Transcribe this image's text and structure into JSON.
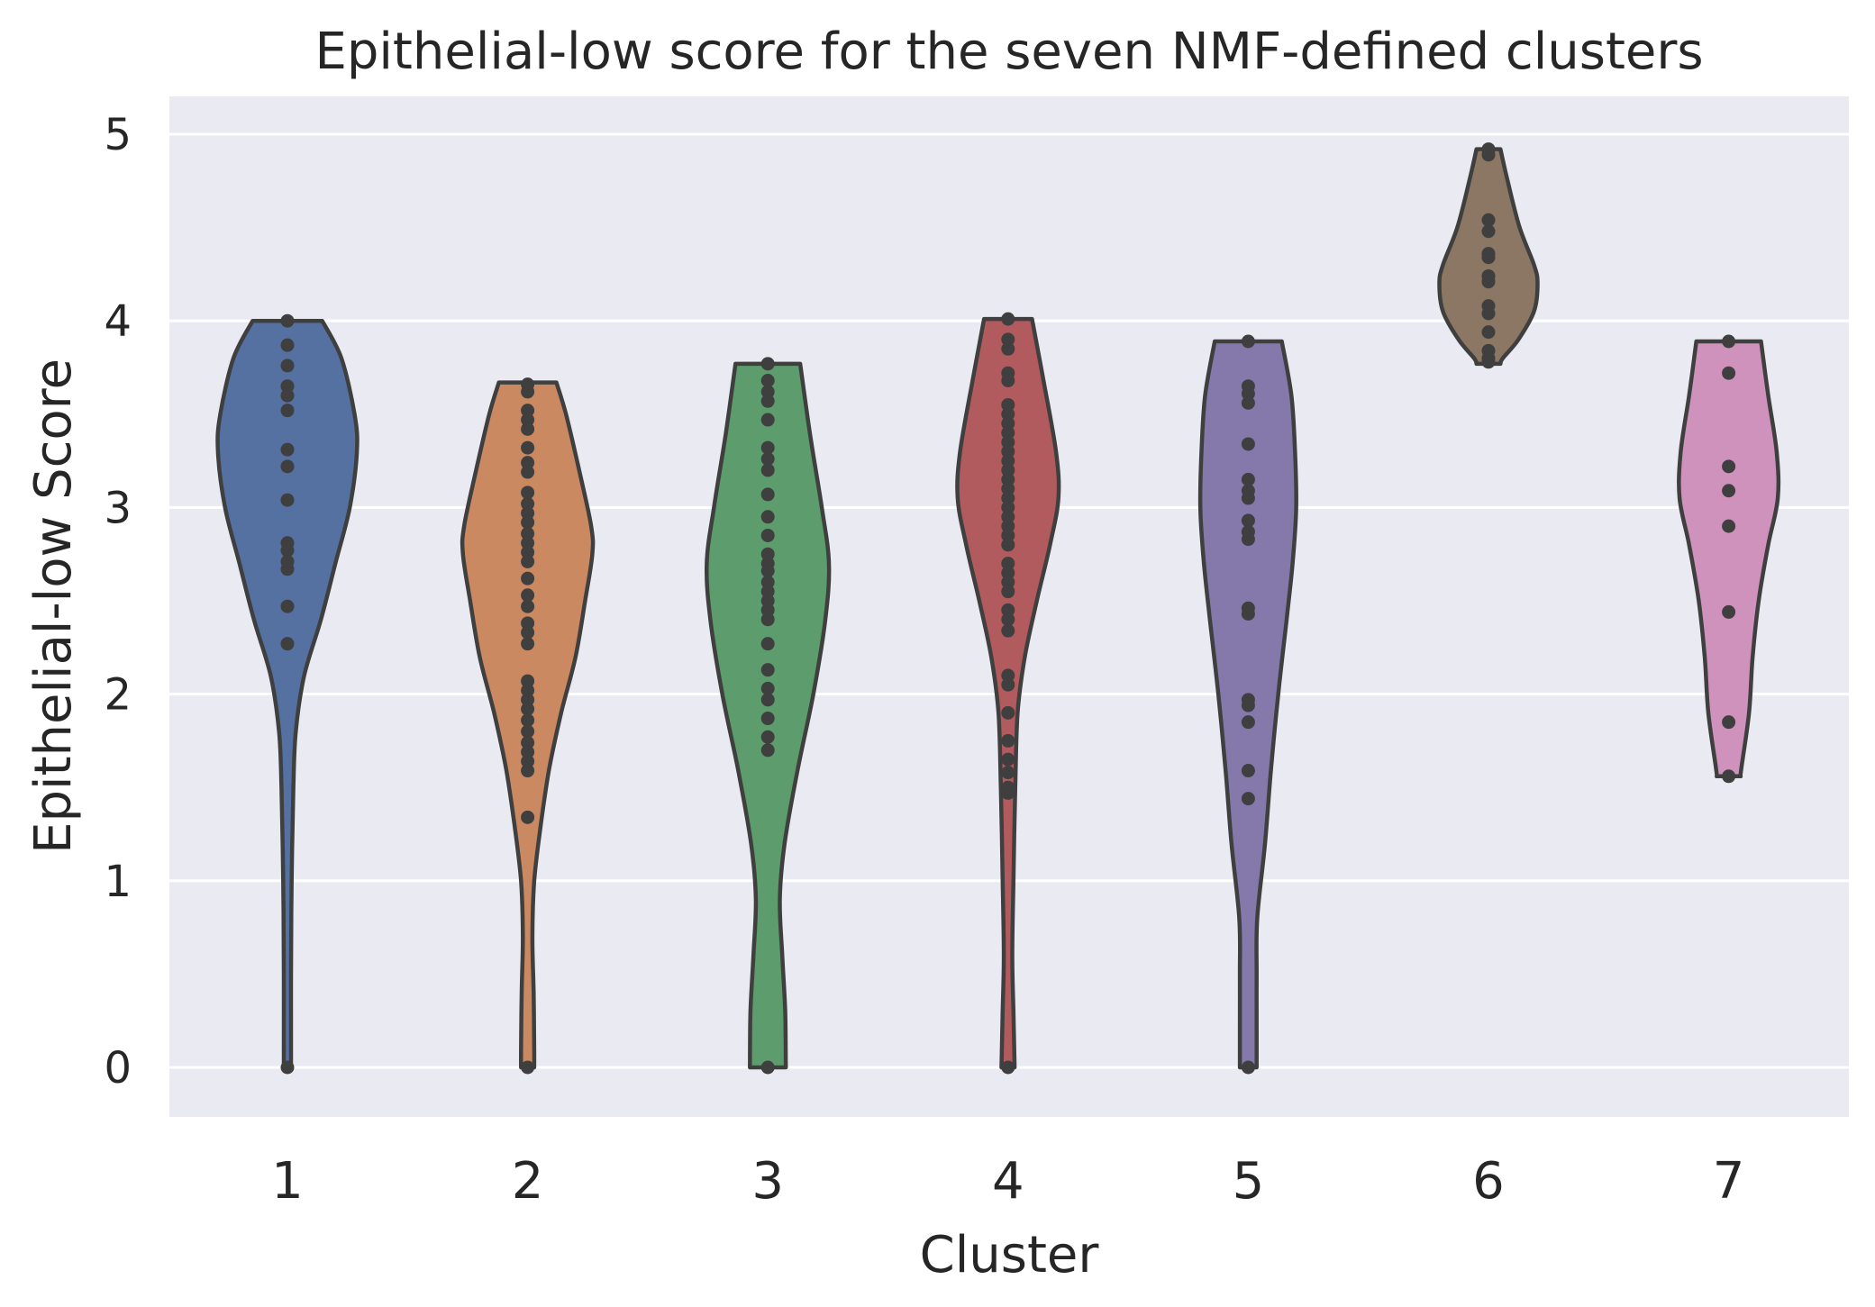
{
  "chart_data": {
    "type": "violin",
    "title": "Epithelial-low score for the seven NMF-defined clusters",
    "xlabel": "Cluster",
    "ylabel": "Epithelial-low Score",
    "ylim": [
      -0.27,
      5.2
    ],
    "yticks": [
      0,
      1,
      2,
      3,
      4,
      5
    ],
    "grid": true,
    "background": "#eaeaf2",
    "outline_color": "#3f3f3f",
    "point_color": "#3f3f3f",
    "categories": [
      "1",
      "2",
      "3",
      "4",
      "5",
      "6",
      "7"
    ],
    "series": [
      {
        "color": "#5471a2",
        "range": [
          0,
          4.0
        ],
        "profile": [
          [
            4.0,
            0.29
          ],
          [
            3.8,
            0.45
          ],
          [
            3.5,
            0.56
          ],
          [
            3.3,
            0.58
          ],
          [
            3.0,
            0.52
          ],
          [
            2.7,
            0.4
          ],
          [
            2.4,
            0.28
          ],
          [
            2.1,
            0.14
          ],
          [
            1.8,
            0.07
          ],
          [
            1.5,
            0.05
          ],
          [
            1.0,
            0.035
          ],
          [
            0.5,
            0.03
          ],
          [
            0.1,
            0.03
          ],
          [
            0.0,
            0.03
          ]
        ],
        "points": [
          4.0,
          3.87,
          3.76,
          3.65,
          3.6,
          3.52,
          3.31,
          3.22,
          3.04,
          2.81,
          2.77,
          2.71,
          2.67,
          2.47,
          2.27,
          0.0
        ]
      },
      {
        "color": "#cb8962",
        "range": [
          0,
          3.67
        ],
        "profile": [
          [
            3.67,
            0.24
          ],
          [
            3.5,
            0.32
          ],
          [
            3.2,
            0.43
          ],
          [
            2.9,
            0.53
          ],
          [
            2.75,
            0.54
          ],
          [
            2.5,
            0.48
          ],
          [
            2.2,
            0.4
          ],
          [
            1.9,
            0.28
          ],
          [
            1.6,
            0.18
          ],
          [
            1.3,
            0.11
          ],
          [
            1.0,
            0.055
          ],
          [
            0.7,
            0.04
          ],
          [
            0.4,
            0.05
          ],
          [
            0.1,
            0.055
          ],
          [
            0.0,
            0.055
          ]
        ],
        "points": [
          3.66,
          3.62,
          3.52,
          3.47,
          3.42,
          3.32,
          3.24,
          3.19,
          3.08,
          3.02,
          2.97,
          2.92,
          2.86,
          2.81,
          2.76,
          2.71,
          2.62,
          2.53,
          2.47,
          2.38,
          2.33,
          2.27,
          2.07,
          2.02,
          1.97,
          1.92,
          1.86,
          1.8,
          1.74,
          1.69,
          1.64,
          1.59,
          1.34,
          0.0
        ]
      },
      {
        "color": "#5d9c6c",
        "range": [
          0,
          3.77
        ],
        "profile": [
          [
            3.77,
            0.27
          ],
          [
            3.4,
            0.35
          ],
          [
            3.0,
            0.45
          ],
          [
            2.7,
            0.51
          ],
          [
            2.4,
            0.48
          ],
          [
            2.0,
            0.38
          ],
          [
            1.6,
            0.25
          ],
          [
            1.2,
            0.14
          ],
          [
            0.9,
            0.1
          ],
          [
            0.6,
            0.12
          ],
          [
            0.3,
            0.145
          ],
          [
            0.0,
            0.15
          ]
        ],
        "points": [
          3.77,
          3.68,
          3.62,
          3.57,
          3.47,
          3.32,
          3.26,
          3.2,
          3.07,
          2.95,
          2.85,
          2.75,
          2.7,
          2.66,
          2.6,
          2.55,
          2.5,
          2.45,
          2.4,
          2.27,
          2.13,
          2.03,
          1.97,
          1.87,
          1.77,
          1.7,
          0.0
        ]
      },
      {
        "color": "#b25b5e",
        "range": [
          0,
          4.01
        ],
        "profile": [
          [
            4.01,
            0.2
          ],
          [
            3.7,
            0.29
          ],
          [
            3.3,
            0.4
          ],
          [
            3.05,
            0.42
          ],
          [
            2.8,
            0.35
          ],
          [
            2.5,
            0.24
          ],
          [
            2.2,
            0.14
          ],
          [
            1.9,
            0.08
          ],
          [
            1.5,
            0.06
          ],
          [
            1.0,
            0.045
          ],
          [
            0.6,
            0.035
          ],
          [
            0.3,
            0.045
          ],
          [
            0.0,
            0.055
          ]
        ],
        "points": [
          4.01,
          3.9,
          3.85,
          3.72,
          3.68,
          3.55,
          3.5,
          3.45,
          3.4,
          3.35,
          3.3,
          3.25,
          3.2,
          3.15,
          3.1,
          3.05,
          3.0,
          2.95,
          2.9,
          2.85,
          2.8,
          2.7,
          2.65,
          2.6,
          2.55,
          2.45,
          2.4,
          2.34,
          2.1,
          2.05,
          1.9,
          1.75,
          1.65,
          1.58,
          1.5,
          1.47,
          0.0
        ]
      },
      {
        "color": "#8579ac",
        "range": [
          0,
          3.89
        ],
        "profile": [
          [
            3.89,
            0.28
          ],
          [
            3.6,
            0.36
          ],
          [
            3.3,
            0.39
          ],
          [
            3.0,
            0.4
          ],
          [
            2.7,
            0.37
          ],
          [
            2.4,
            0.32
          ],
          [
            2.0,
            0.25
          ],
          [
            1.6,
            0.19
          ],
          [
            1.2,
            0.14
          ],
          [
            0.8,
            0.075
          ],
          [
            0.5,
            0.07
          ],
          [
            0.2,
            0.07
          ],
          [
            0.0,
            0.07
          ]
        ],
        "points": [
          3.89,
          3.65,
          3.61,
          3.56,
          3.34,
          3.15,
          3.09,
          3.05,
          2.93,
          2.87,
          2.83,
          2.46,
          2.43,
          1.97,
          1.94,
          1.85,
          1.59,
          1.44,
          0.0
        ]
      },
      {
        "color": "#8b7763",
        "range": [
          3.77,
          4.92
        ],
        "profile": [
          [
            4.92,
            0.1
          ],
          [
            4.75,
            0.16
          ],
          [
            4.5,
            0.26
          ],
          [
            4.3,
            0.38
          ],
          [
            4.2,
            0.41
          ],
          [
            4.05,
            0.38
          ],
          [
            3.9,
            0.25
          ],
          [
            3.8,
            0.12
          ],
          [
            3.77,
            0.1
          ]
        ],
        "points": [
          4.92,
          4.89,
          4.54,
          4.48,
          4.36,
          4.34,
          4.24,
          4.21,
          4.08,
          4.04,
          3.94,
          3.84,
          3.8,
          3.78
        ]
      },
      {
        "color": "#cf92bd",
        "range": [
          1.56,
          3.89
        ],
        "profile": [
          [
            3.89,
            0.27
          ],
          [
            3.6,
            0.33
          ],
          [
            3.3,
            0.4
          ],
          [
            3.05,
            0.41
          ],
          [
            2.8,
            0.33
          ],
          [
            2.5,
            0.25
          ],
          [
            2.2,
            0.2
          ],
          [
            1.9,
            0.17
          ],
          [
            1.6,
            0.105
          ],
          [
            1.56,
            0.1
          ]
        ],
        "points": [
          3.89,
          3.72,
          3.22,
          3.09,
          2.9,
          2.44,
          1.85,
          1.56
        ]
      }
    ]
  }
}
